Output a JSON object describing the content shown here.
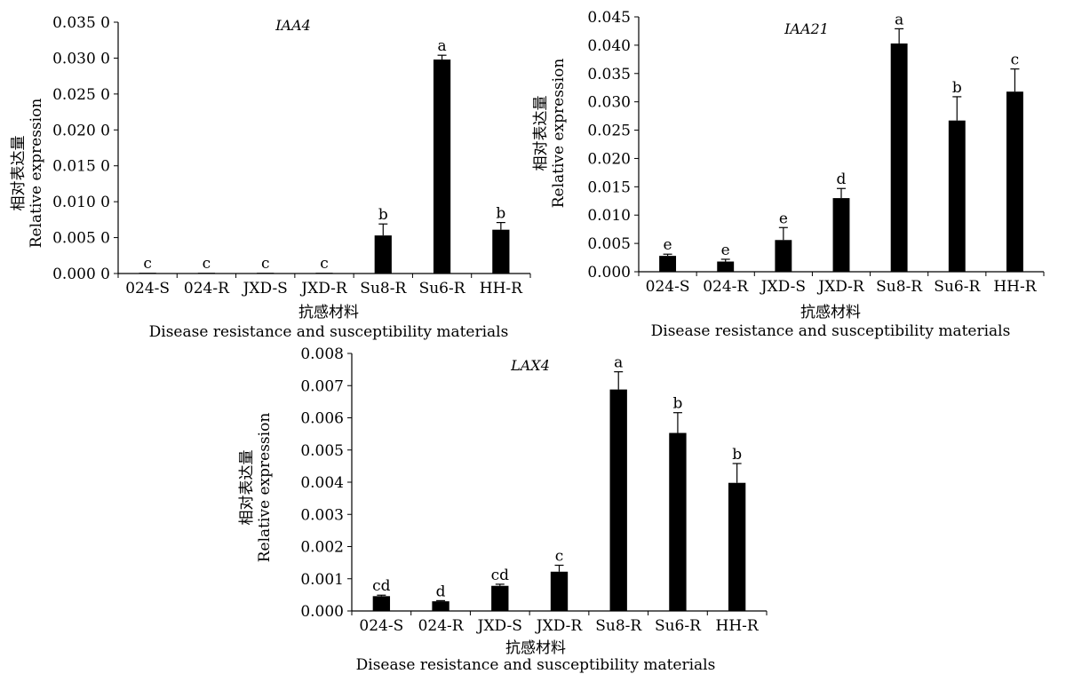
{
  "chart_data": [
    {
      "type": "bar",
      "title": "IAA4",
      "ylabel_cn": "相对表达量",
      "ylabel_en": "Relative expression",
      "xlabel_cn": "抗感材料",
      "xlabel_en": "Disease resistance and susceptibility materials",
      "categories": [
        "024-S",
        "024-R",
        "JXD-S",
        "JXD-R",
        "Su8-R",
        "Su6-R",
        "HH-R"
      ],
      "values": [
        0.0001,
        0.0001,
        0.0001,
        0.0001,
        0.0053,
        0.0298,
        0.0061
      ],
      "errors": [
        0,
        0,
        0,
        0,
        0.0016,
        0.0006,
        0.001
      ],
      "significance": [
        "c",
        "c",
        "c",
        "c",
        "b",
        "a",
        "b"
      ],
      "ylim": [
        0,
        0.035
      ],
      "yticks": [
        "0.000 0",
        "0.005 0",
        "0.010 0",
        "0.015 0",
        "0.020 0",
        "0.025 0",
        "0.030 0",
        "0.035 0"
      ],
      "bar_color": "#000000"
    },
    {
      "type": "bar",
      "title": "IAA21",
      "ylabel_cn": "相对表达量",
      "ylabel_en": "Relative expression",
      "xlabel_cn": "抗感材料",
      "xlabel_en": "Disease resistance and susceptibility materials",
      "categories": [
        "024-S",
        "024-R",
        "JXD-S",
        "JXD-R",
        "Su8-R",
        "Su6-R",
        "HH-R"
      ],
      "values": [
        0.0028,
        0.0018,
        0.0056,
        0.013,
        0.0403,
        0.0267,
        0.0318
      ],
      "errors": [
        0.0003,
        0.0004,
        0.0022,
        0.0017,
        0.0026,
        0.0042,
        0.004
      ],
      "significance": [
        "e",
        "e",
        "e",
        "d",
        "a",
        "b",
        "c"
      ],
      "ylim": [
        0,
        0.045
      ],
      "yticks": [
        "0.000",
        "0.005",
        "0.010",
        "0.015",
        "0.020",
        "0.025",
        "0.030",
        "0.035",
        "0.040",
        "0.045"
      ],
      "bar_color": "#000000"
    },
    {
      "type": "bar",
      "title": "LAX4",
      "ylabel_cn": "相对表达量",
      "ylabel_en": "Relative expression",
      "xlabel_cn": "抗感材料",
      "xlabel_en": "Disease resistance and susceptibility materials",
      "categories": [
        "024-S",
        "024-R",
        "JXD-S",
        "JXD-R",
        "Su8-R",
        "Su6-R",
        "HH-R"
      ],
      "values": [
        0.00046,
        0.0003,
        0.00078,
        0.00122,
        0.00688,
        0.00553,
        0.00398
      ],
      "errors": [
        3e-05,
        2e-05,
        5e-05,
        0.0002,
        0.00055,
        0.00063,
        0.0006
      ],
      "significance": [
        "cd",
        "d",
        "cd",
        "c",
        "a",
        "b",
        "b"
      ],
      "ylim": [
        0,
        0.008
      ],
      "yticks": [
        "0.000",
        "0.001",
        "0.002",
        "0.003",
        "0.004",
        "0.005",
        "0.006",
        "0.007",
        "0.008"
      ],
      "bar_color": "#000000"
    }
  ]
}
